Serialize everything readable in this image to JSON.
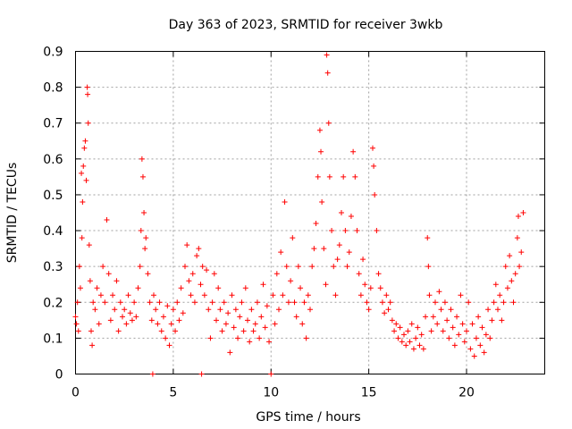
{
  "chart_data": {
    "type": "scatter",
    "title": "Day 363 of 2023, SRMTID for receiver 3wkb",
    "xlabel": "GPS time / hours",
    "ylabel": "SRMTID / TECUs",
    "xlim": [
      0,
      24
    ],
    "ylim": [
      0,
      0.9
    ],
    "x_ticks": [
      0,
      5,
      10,
      15,
      20
    ],
    "x_tick_labels": [
      "0",
      "5",
      "10",
      "15",
      "20"
    ],
    "y_ticks": [
      0,
      0.1,
      0.2,
      0.3,
      0.4,
      0.5,
      0.6,
      0.7,
      0.8,
      0.9
    ],
    "y_tick_labels": [
      "0",
      "0.1",
      "0.2",
      "0.3",
      "0.4",
      "0.5",
      "0.6",
      "0.7",
      "0.8",
      "0.9"
    ],
    "grid": true,
    "marker": "+",
    "color": "#ff0000",
    "series": [
      {
        "name": "SRMTID",
        "points": [
          [
            0.0,
            0.16
          ],
          [
            0.05,
            0.14
          ],
          [
            0.1,
            0.2
          ],
          [
            0.15,
            0.12
          ],
          [
            0.2,
            0.3
          ],
          [
            0.25,
            0.24
          ],
          [
            0.3,
            0.56
          ],
          [
            0.33,
            0.38
          ],
          [
            0.36,
            0.48
          ],
          [
            0.4,
            0.58
          ],
          [
            0.45,
            0.63
          ],
          [
            0.5,
            0.65
          ],
          [
            0.55,
            0.54
          ],
          [
            0.6,
            0.8
          ],
          [
            0.62,
            0.78
          ],
          [
            0.65,
            0.7
          ],
          [
            0.7,
            0.36
          ],
          [
            0.75,
            0.26
          ],
          [
            0.8,
            0.12
          ],
          [
            0.85,
            0.08
          ],
          [
            0.9,
            0.2
          ],
          [
            1.0,
            0.18
          ],
          [
            1.1,
            0.24
          ],
          [
            1.2,
            0.14
          ],
          [
            1.3,
            0.22
          ],
          [
            1.4,
            0.3
          ],
          [
            1.5,
            0.2
          ],
          [
            1.6,
            0.43
          ],
          [
            1.7,
            0.28
          ],
          [
            1.8,
            0.15
          ],
          [
            1.9,
            0.22
          ],
          [
            2.0,
            0.18
          ],
          [
            2.1,
            0.26
          ],
          [
            2.2,
            0.12
          ],
          [
            2.3,
            0.2
          ],
          [
            2.4,
            0.16
          ],
          [
            2.5,
            0.18
          ],
          [
            2.6,
            0.14
          ],
          [
            2.7,
            0.22
          ],
          [
            2.8,
            0.17
          ],
          [
            2.9,
            0.15
          ],
          [
            3.0,
            0.2
          ],
          [
            3.1,
            0.16
          ],
          [
            3.2,
            0.24
          ],
          [
            3.3,
            0.3
          ],
          [
            3.35,
            0.4
          ],
          [
            3.4,
            0.6
          ],
          [
            3.45,
            0.55
          ],
          [
            3.5,
            0.45
          ],
          [
            3.55,
            0.35
          ],
          [
            3.6,
            0.38
          ],
          [
            3.7,
            0.28
          ],
          [
            3.8,
            0.2
          ],
          [
            3.9,
            0.15
          ],
          [
            3.95,
            0.0
          ],
          [
            4.0,
            0.22
          ],
          [
            4.1,
            0.18
          ],
          [
            4.2,
            0.14
          ],
          [
            4.3,
            0.2
          ],
          [
            4.4,
            0.12
          ],
          [
            4.5,
            0.16
          ],
          [
            4.6,
            0.1
          ],
          [
            4.7,
            0.19
          ],
          [
            4.8,
            0.08
          ],
          [
            4.9,
            0.14
          ],
          [
            5.0,
            0.18
          ],
          [
            5.1,
            0.12
          ],
          [
            5.2,
            0.2
          ],
          [
            5.3,
            0.15
          ],
          [
            5.4,
            0.24
          ],
          [
            5.5,
            0.17
          ],
          [
            5.6,
            0.3
          ],
          [
            5.7,
            0.36
          ],
          [
            5.8,
            0.26
          ],
          [
            5.9,
            0.22
          ],
          [
            6.0,
            0.28
          ],
          [
            6.1,
            0.2
          ],
          [
            6.2,
            0.33
          ],
          [
            6.3,
            0.35
          ],
          [
            6.4,
            0.25
          ],
          [
            6.45,
            0.0
          ],
          [
            6.5,
            0.3
          ],
          [
            6.6,
            0.22
          ],
          [
            6.7,
            0.29
          ],
          [
            6.8,
            0.18
          ],
          [
            6.9,
            0.1
          ],
          [
            7.0,
            0.2
          ],
          [
            7.1,
            0.28
          ],
          [
            7.2,
            0.15
          ],
          [
            7.3,
            0.24
          ],
          [
            7.4,
            0.18
          ],
          [
            7.5,
            0.12
          ],
          [
            7.6,
            0.2
          ],
          [
            7.7,
            0.14
          ],
          [
            7.8,
            0.17
          ],
          [
            7.9,
            0.06
          ],
          [
            8.0,
            0.22
          ],
          [
            8.1,
            0.13
          ],
          [
            8.2,
            0.18
          ],
          [
            8.3,
            0.1
          ],
          [
            8.4,
            0.16
          ],
          [
            8.5,
            0.2
          ],
          [
            8.6,
            0.12
          ],
          [
            8.7,
            0.24
          ],
          [
            8.8,
            0.15
          ],
          [
            8.9,
            0.09
          ],
          [
            9.0,
            0.18
          ],
          [
            9.1,
            0.12
          ],
          [
            9.2,
            0.14
          ],
          [
            9.3,
            0.2
          ],
          [
            9.4,
            0.1
          ],
          [
            9.5,
            0.16
          ],
          [
            9.6,
            0.25
          ],
          [
            9.7,
            0.13
          ],
          [
            9.8,
            0.19
          ],
          [
            9.9,
            0.09
          ],
          [
            10.0,
            0.0
          ],
          [
            10.1,
            0.22
          ],
          [
            10.2,
            0.14
          ],
          [
            10.3,
            0.28
          ],
          [
            10.4,
            0.18
          ],
          [
            10.5,
            0.34
          ],
          [
            10.6,
            0.22
          ],
          [
            10.7,
            0.48
          ],
          [
            10.8,
            0.3
          ],
          [
            10.9,
            0.2
          ],
          [
            11.0,
            0.26
          ],
          [
            11.1,
            0.38
          ],
          [
            11.2,
            0.2
          ],
          [
            11.3,
            0.16
          ],
          [
            11.4,
            0.3
          ],
          [
            11.5,
            0.24
          ],
          [
            11.6,
            0.14
          ],
          [
            11.7,
            0.2
          ],
          [
            11.8,
            0.1
          ],
          [
            11.9,
            0.22
          ],
          [
            12.0,
            0.18
          ],
          [
            12.1,
            0.3
          ],
          [
            12.2,
            0.35
          ],
          [
            12.3,
            0.42
          ],
          [
            12.4,
            0.55
          ],
          [
            12.5,
            0.68
          ],
          [
            12.55,
            0.62
          ],
          [
            12.6,
            0.48
          ],
          [
            12.7,
            0.35
          ],
          [
            12.8,
            0.25
          ],
          [
            12.85,
            0.89
          ],
          [
            12.9,
            0.84
          ],
          [
            12.95,
            0.7
          ],
          [
            13.0,
            0.55
          ],
          [
            13.1,
            0.4
          ],
          [
            13.2,
            0.3
          ],
          [
            13.3,
            0.22
          ],
          [
            13.4,
            0.32
          ],
          [
            13.5,
            0.36
          ],
          [
            13.6,
            0.45
          ],
          [
            13.7,
            0.55
          ],
          [
            13.8,
            0.4
          ],
          [
            13.9,
            0.3
          ],
          [
            14.0,
            0.34
          ],
          [
            14.1,
            0.44
          ],
          [
            14.2,
            0.62
          ],
          [
            14.3,
            0.55
          ],
          [
            14.4,
            0.4
          ],
          [
            14.5,
            0.28
          ],
          [
            14.6,
            0.22
          ],
          [
            14.7,
            0.32
          ],
          [
            14.8,
            0.25
          ],
          [
            14.9,
            0.2
          ],
          [
            15.0,
            0.18
          ],
          [
            15.1,
            0.24
          ],
          [
            15.2,
            0.63
          ],
          [
            15.25,
            0.58
          ],
          [
            15.3,
            0.5
          ],
          [
            15.4,
            0.4
          ],
          [
            15.5,
            0.28
          ],
          [
            15.6,
            0.24
          ],
          [
            15.7,
            0.2
          ],
          [
            15.8,
            0.17
          ],
          [
            15.9,
            0.22
          ],
          [
            16.0,
            0.18
          ],
          [
            16.1,
            0.2
          ],
          [
            16.2,
            0.15
          ],
          [
            16.3,
            0.12
          ],
          [
            16.4,
            0.14
          ],
          [
            16.5,
            0.1
          ],
          [
            16.6,
            0.13
          ],
          [
            16.7,
            0.09
          ],
          [
            16.8,
            0.11
          ],
          [
            16.9,
            0.08
          ],
          [
            17.0,
            0.12
          ],
          [
            17.1,
            0.09
          ],
          [
            17.2,
            0.14
          ],
          [
            17.3,
            0.07
          ],
          [
            17.4,
            0.1
          ],
          [
            17.5,
            0.13
          ],
          [
            17.6,
            0.08
          ],
          [
            17.7,
            0.11
          ],
          [
            17.8,
            0.07
          ],
          [
            17.9,
            0.16
          ],
          [
            18.0,
            0.38
          ],
          [
            18.05,
            0.3
          ],
          [
            18.1,
            0.22
          ],
          [
            18.2,
            0.12
          ],
          [
            18.3,
            0.16
          ],
          [
            18.4,
            0.2
          ],
          [
            18.5,
            0.14
          ],
          [
            18.6,
            0.23
          ],
          [
            18.7,
            0.18
          ],
          [
            18.8,
            0.12
          ],
          [
            18.9,
            0.2
          ],
          [
            19.0,
            0.15
          ],
          [
            19.1,
            0.1
          ],
          [
            19.2,
            0.18
          ],
          [
            19.3,
            0.13
          ],
          [
            19.4,
            0.08
          ],
          [
            19.5,
            0.16
          ],
          [
            19.6,
            0.11
          ],
          [
            19.7,
            0.22
          ],
          [
            19.8,
            0.14
          ],
          [
            19.9,
            0.09
          ],
          [
            20.0,
            0.12
          ],
          [
            20.1,
            0.2
          ],
          [
            20.2,
            0.07
          ],
          [
            20.3,
            0.14
          ],
          [
            20.4,
            0.05
          ],
          [
            20.5,
            0.1
          ],
          [
            20.6,
            0.16
          ],
          [
            20.7,
            0.08
          ],
          [
            20.8,
            0.13
          ],
          [
            20.9,
            0.06
          ],
          [
            21.0,
            0.11
          ],
          [
            21.1,
            0.18
          ],
          [
            21.2,
            0.1
          ],
          [
            21.3,
            0.15
          ],
          [
            21.4,
            0.2
          ],
          [
            21.5,
            0.25
          ],
          [
            21.6,
            0.18
          ],
          [
            21.7,
            0.22
          ],
          [
            21.8,
            0.15
          ],
          [
            21.9,
            0.2
          ],
          [
            22.0,
            0.3
          ],
          [
            22.1,
            0.24
          ],
          [
            22.2,
            0.33
          ],
          [
            22.3,
            0.26
          ],
          [
            22.4,
            0.2
          ],
          [
            22.5,
            0.28
          ],
          [
            22.6,
            0.38
          ],
          [
            22.65,
            0.44
          ],
          [
            22.7,
            0.3
          ],
          [
            22.8,
            0.34
          ],
          [
            22.9,
            0.45
          ]
        ]
      }
    ]
  }
}
